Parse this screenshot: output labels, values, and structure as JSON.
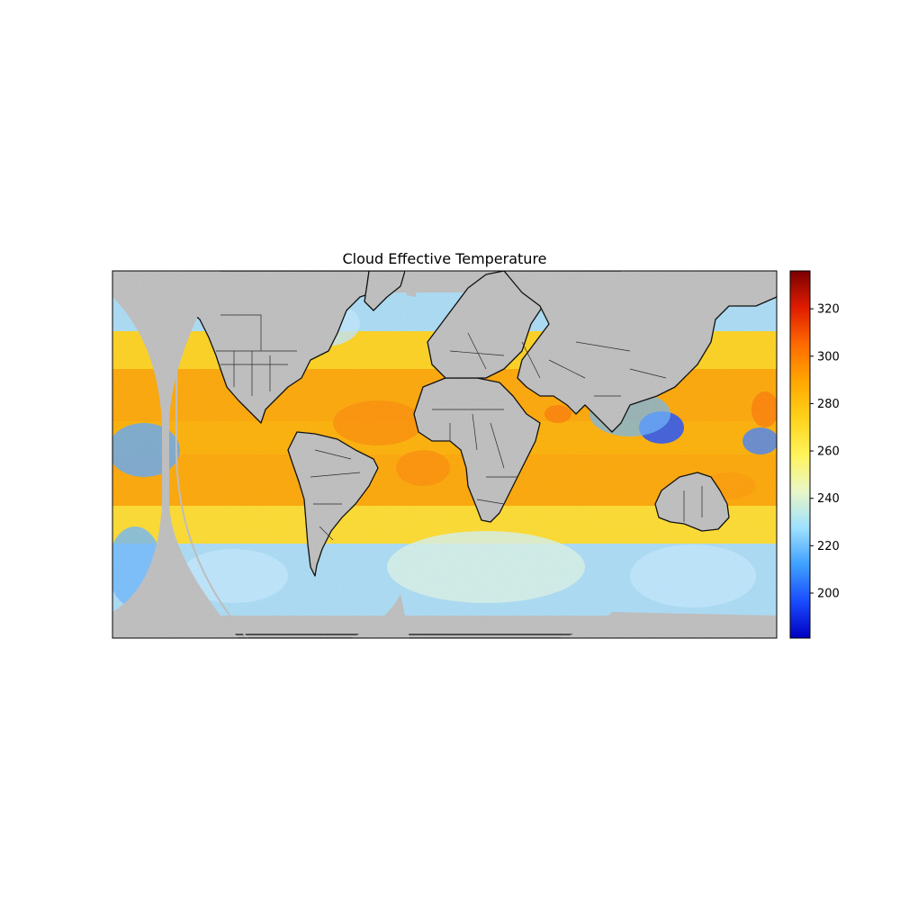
{
  "figure": {
    "title": "Cloud Effective Temperature"
  },
  "colors": {
    "nodata": "#bebebe",
    "coast": "#000000",
    "border": "#2a2a2a",
    "colormap": [
      "#0000c0",
      "#1a4cff",
      "#3fa0ff",
      "#9ee0ff",
      "#e9f7c8",
      "#fff35a",
      "#ffd21a",
      "#ffa600",
      "#ff6a00",
      "#e01c00",
      "#7a0000"
    ]
  },
  "colorbar": {
    "min": 181,
    "max": 336,
    "ticks": [
      200,
      220,
      240,
      260,
      280,
      300,
      320
    ],
    "tick_labels": [
      "200",
      "220",
      "240",
      "260",
      "280",
      "300",
      "320"
    ]
  },
  "map": {
    "projection": "equirectangular",
    "lon_range": [
      -180,
      180
    ],
    "lat_range": [
      -80,
      80
    ],
    "variable": "cloud effective temperature",
    "features": [
      "coastlines",
      "country borders",
      "US state borders",
      "data gaps between satellite footprints"
    ]
  }
}
